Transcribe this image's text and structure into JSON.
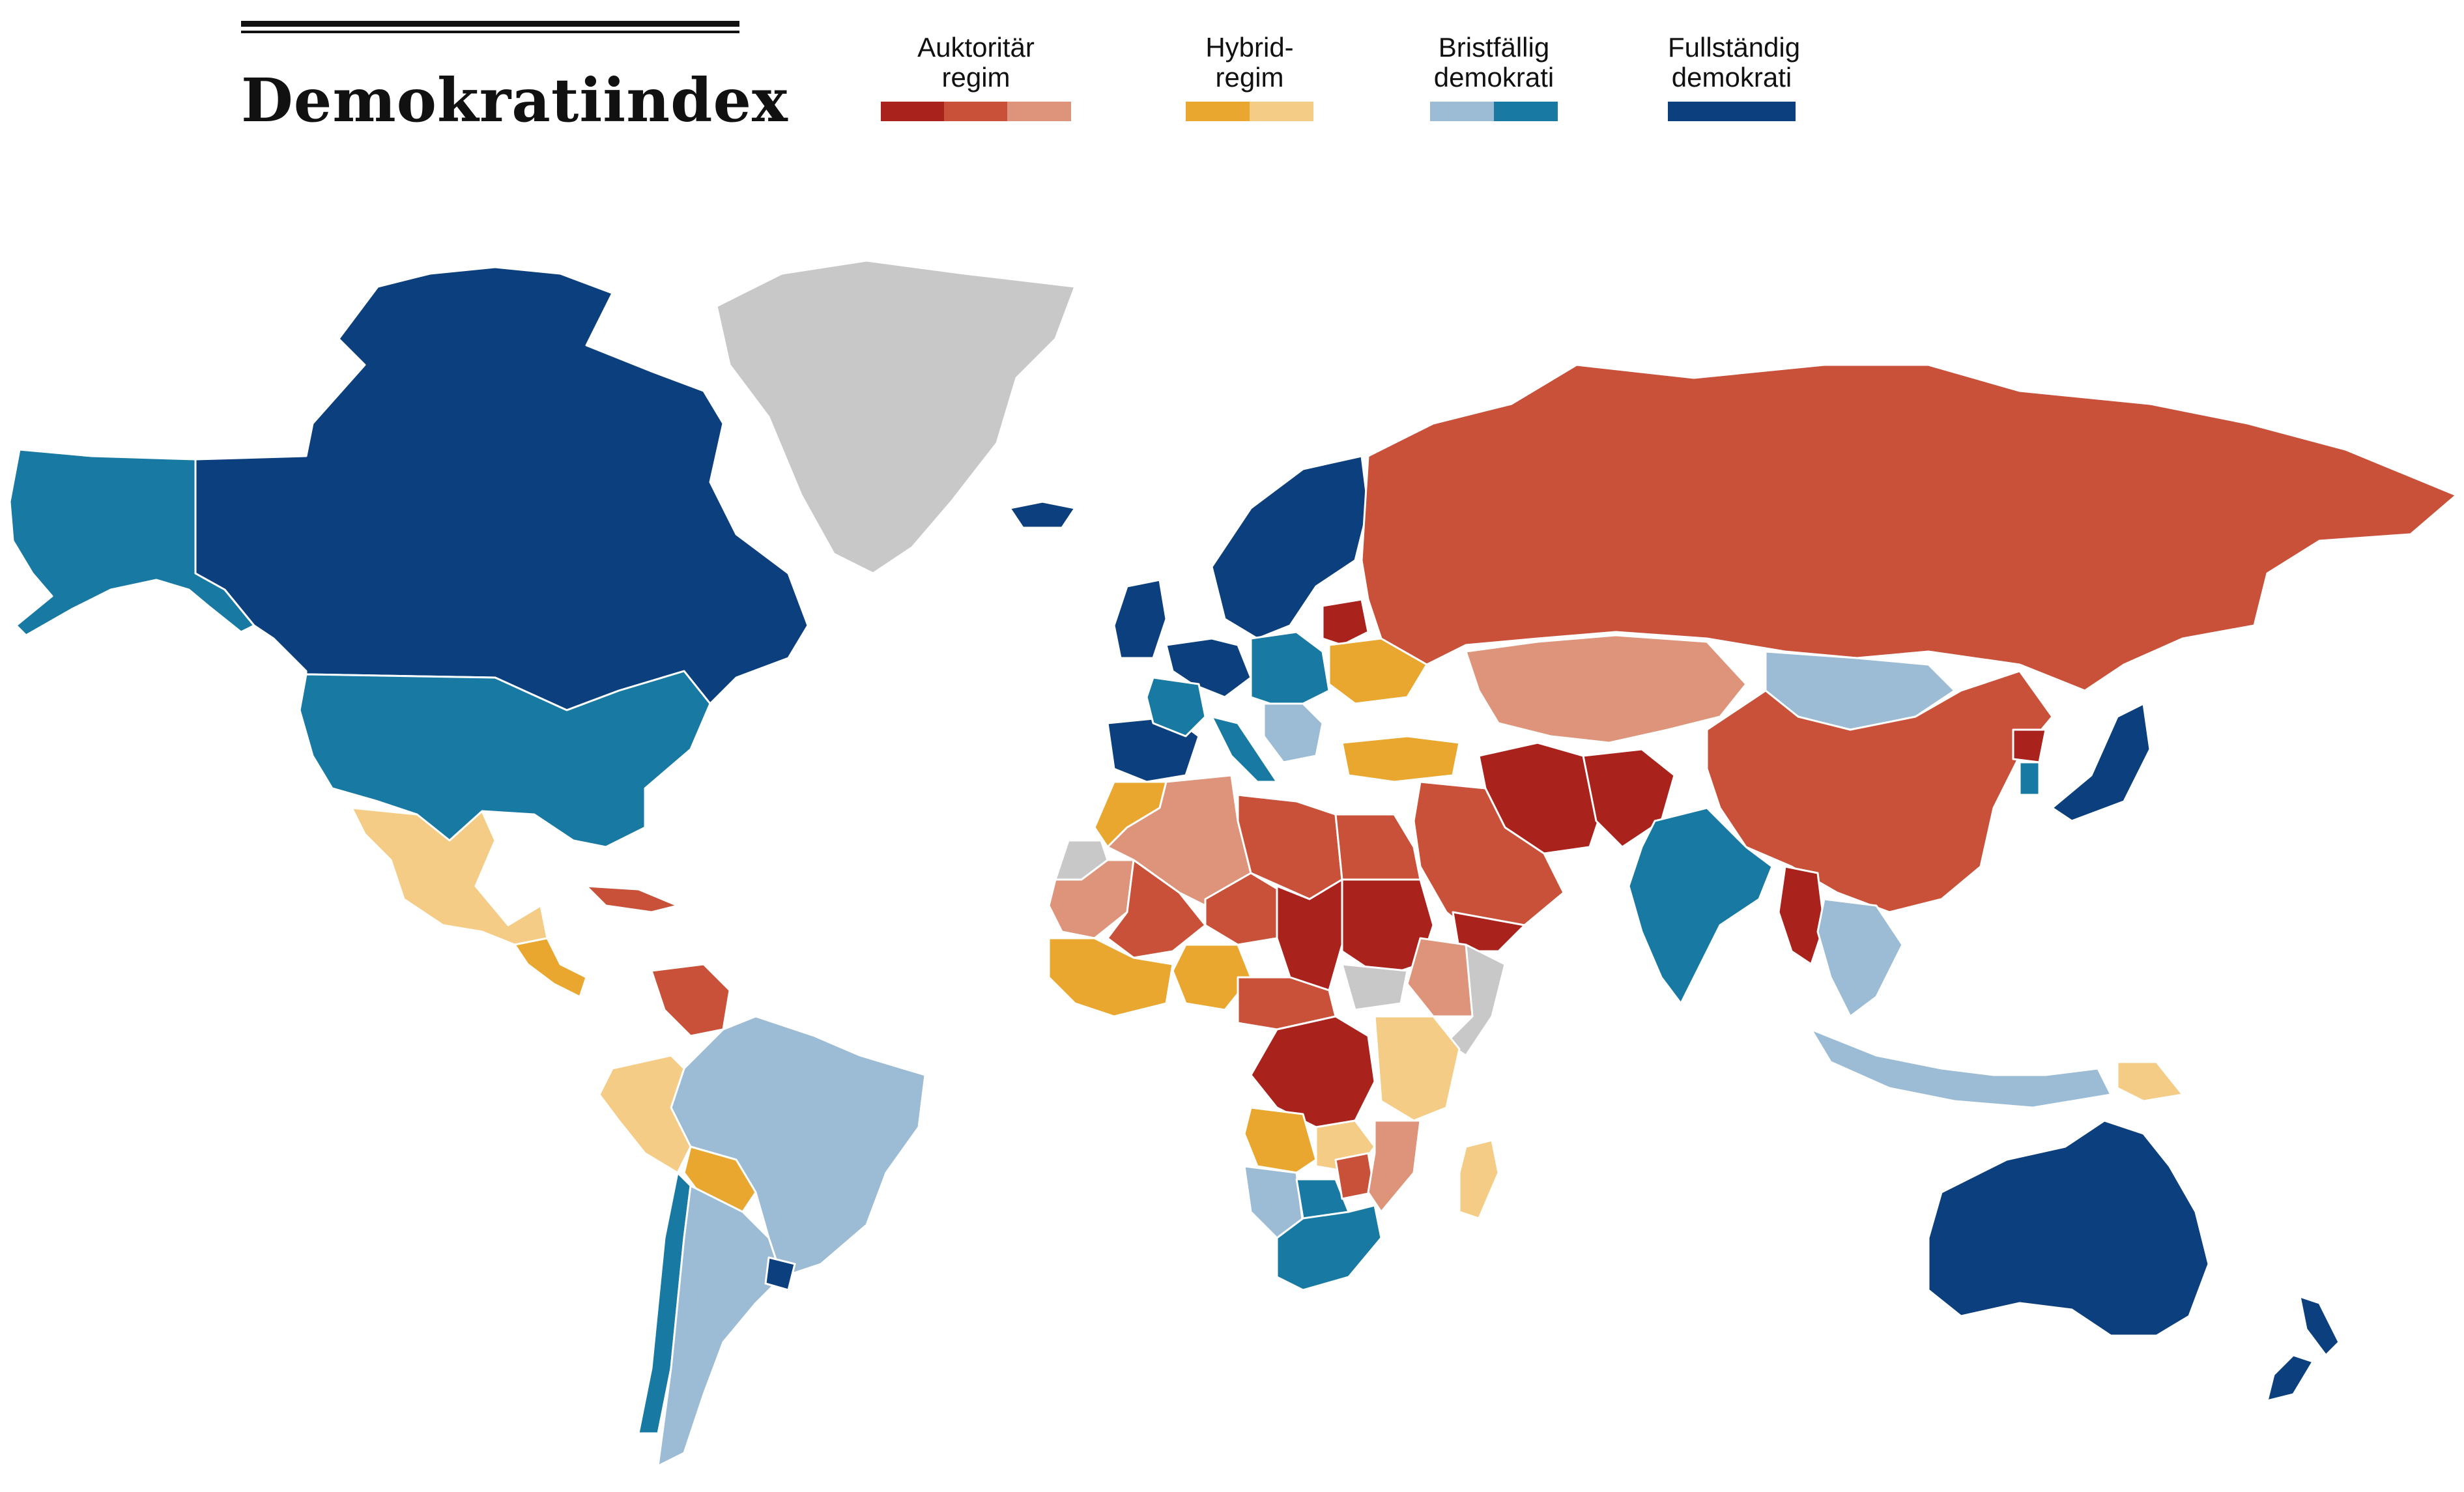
{
  "title": "Demokratiindex",
  "legend": [
    {
      "label_line1": "Auktoritär",
      "label_line2": "regim",
      "colors": [
        "#a9231c",
        "#c9513a",
        "#dd947a"
      ]
    },
    {
      "label_line1": "Hybrid-",
      "label_line2": "regim",
      "colors": [
        "#e9a72f",
        "#f5cc86"
      ]
    },
    {
      "label_line1": "Bristfällig",
      "label_line2": "demokrati",
      "colors": [
        "#9bbcd4",
        "#187aa3"
      ]
    },
    {
      "label_line1": "Fullständig",
      "label_line2": "demokrati",
      "colors": [
        "#0c3f7d"
      ]
    }
  ],
  "no_data_color": "#c8c8c8",
  "regions": [
    {
      "name": "Alaska",
      "category": "bristfällig demokrati",
      "color": "#187aa3"
    },
    {
      "name": "Kanada",
      "category": "fullständig demokrati",
      "color": "#0c3f7d"
    },
    {
      "name": "Grönland",
      "category": "ingen data",
      "color": "#c8c8c8"
    },
    {
      "name": "USA",
      "category": "bristfällig demokrati",
      "color": "#187aa3"
    },
    {
      "name": "Mexiko",
      "category": "hybridregim",
      "color": "#f5cc86"
    },
    {
      "name": "Centralamerika",
      "category": "hybridregim",
      "color": "#e9a72f"
    },
    {
      "name": "Kuba",
      "category": "auktoritär regim",
      "color": "#c9513a"
    },
    {
      "name": "Venezuela",
      "category": "auktoritär regim",
      "color": "#c9513a"
    },
    {
      "name": "Brasilien",
      "category": "bristfällig demokrati",
      "color": "#9bbcd4"
    },
    {
      "name": "Peru",
      "category": "hybridregim",
      "color": "#f5cc86"
    },
    {
      "name": "Bolivia",
      "category": "hybridregim",
      "color": "#e9a72f"
    },
    {
      "name": "Chile",
      "category": "bristfällig demokrati",
      "color": "#187aa3"
    },
    {
      "name": "Argentina",
      "category": "bristfällig demokrati",
      "color": "#9bbcd4"
    },
    {
      "name": "Uruguay",
      "category": "fullständig demokrati",
      "color": "#0c3f7d"
    },
    {
      "name": "Island",
      "category": "fullständig demokrati",
      "color": "#0c3f7d"
    },
    {
      "name": "Norden",
      "category": "fullständig demokrati",
      "color": "#0c3f7d"
    },
    {
      "name": "Storbritannien",
      "category": "fullständig demokrati",
      "color": "#0c3f7d"
    },
    {
      "name": "Västeuropa",
      "category": "fullständig demokrati",
      "color": "#0c3f7d"
    },
    {
      "name": "Iberiska halvön",
      "category": "fullständig demokrati",
      "color": "#0c3f7d"
    },
    {
      "name": "Frankrike",
      "category": "bristfällig demokrati",
      "color": "#187aa3"
    },
    {
      "name": "Italien",
      "category": "bristfällig demokrati",
      "color": "#187aa3"
    },
    {
      "name": "Östeuropa",
      "category": "bristfällig demokrati",
      "color": "#187aa3"
    },
    {
      "name": "Balkan",
      "category": "bristfällig demokrati",
      "color": "#9bbcd4"
    },
    {
      "name": "Vitryssland",
      "category": "auktoritär regim",
      "color": "#a9231c"
    },
    {
      "name": "Ukraina",
      "category": "hybridregim",
      "color": "#e9a72f"
    },
    {
      "name": "Turkiet",
      "category": "hybridregim",
      "color": "#e9a72f"
    },
    {
      "name": "Ryssland",
      "category": "auktoritär regim",
      "color": "#c9513a"
    },
    {
      "name": "Kazakstan",
      "category": "auktoritär regim",
      "color": "#dd947a"
    },
    {
      "name": "Mongoliet",
      "category": "bristfällig demokrati",
      "color": "#9bbcd4"
    },
    {
      "name": "Kina",
      "category": "auktoritär regim",
      "color": "#c9513a"
    },
    {
      "name": "Iran",
      "category": "auktoritär regim",
      "color": "#a9231c"
    },
    {
      "name": "Afghanistan",
      "category": "auktoritär regim",
      "color": "#a9231c"
    },
    {
      "name": "Arabiska halvön",
      "category": "auktoritär regim",
      "color": "#c9513a"
    },
    {
      "name": "Jemen",
      "category": "auktoritär regim",
      "color": "#a9231c"
    },
    {
      "name": "Indien",
      "category": "bristfällig demokrati",
      "color": "#187aa3"
    },
    {
      "name": "Myanmar",
      "category": "auktoritär regim",
      "color": "#a9231c"
    },
    {
      "name": "Sydostasien",
      "category": "bristfällig demokrati",
      "color": "#9bbcd4"
    },
    {
      "name": "Indonesien",
      "category": "bristfällig demokrati",
      "color": "#9bbcd4"
    },
    {
      "name": "Japan",
      "category": "fullständig demokrati",
      "color": "#0c3f7d"
    },
    {
      "name": "Sydkorea",
      "category": "bristfällig demokrati",
      "color": "#187aa3"
    },
    {
      "name": "Nordkorea",
      "category": "auktoritär regim",
      "color": "#a9231c"
    },
    {
      "name": "Papua Nya Guinea",
      "category": "hybridregim",
      "color": "#f5cc86"
    },
    {
      "name": "Australien",
      "category": "fullständig demokrati",
      "color": "#0c3f7d"
    },
    {
      "name": "Nya Zeeland",
      "category": "fullständig demokrati",
      "color": "#0c3f7d"
    },
    {
      "name": "Marocko",
      "category": "hybridregim",
      "color": "#e9a72f"
    },
    {
      "name": "Algeriet",
      "category": "auktoritär regim",
      "color": "#dd947a"
    },
    {
      "name": "Libyen",
      "category": "auktoritär regim",
      "color": "#c9513a"
    },
    {
      "name": "Egypten",
      "category": "auktoritär regim",
      "color": "#c9513a"
    },
    {
      "name": "Mauretanien",
      "category": "auktoritär regim",
      "color": "#dd947a"
    },
    {
      "name": "Mali",
      "category": "auktoritär regim",
      "color": "#c9513a"
    },
    {
      "name": "Niger",
      "category": "auktoritär regim",
      "color": "#c9513a"
    },
    {
      "name": "Tchad",
      "category": "auktoritär regim",
      "color": "#a9231c"
    },
    {
      "name": "Sudan",
      "category": "auktoritär regim",
      "color": "#a9231c"
    },
    {
      "name": "Västra Sahara",
      "category": "ingen data",
      "color": "#c8c8c8"
    },
    {
      "name": "Västafrika",
      "category": "hybridregim",
      "color": "#e9a72f"
    },
    {
      "name": "Nigeria",
      "category": "hybridregim",
      "color": "#e9a72f"
    },
    {
      "name": "Centralafrika",
      "category": "auktoritär regim",
      "color": "#c9513a"
    },
    {
      "name": "DR Kongo",
      "category": "auktoritär regim",
      "color": "#a9231c"
    },
    {
      "name": "Etiopien",
      "category": "auktoritär regim",
      "color": "#dd947a"
    },
    {
      "name": "Somalia",
      "category": "ingen data",
      "color": "#c8c8c8"
    },
    {
      "name": "Sydsudan",
      "category": "ingen data",
      "color": "#c8c8c8"
    },
    {
      "name": "Östafrika",
      "category": "hybridregim",
      "color": "#f5cc86"
    },
    {
      "name": "Angola",
      "category": "hybridregim",
      "color": "#e9a72f"
    },
    {
      "name": "Zambia",
      "category": "hybridregim",
      "color": "#f5cc86"
    },
    {
      "name": "Namibia",
      "category": "bristfällig demokrati",
      "color": "#9bbcd4"
    },
    {
      "name": "Botswana",
      "category": "bristfällig demokrati",
      "color": "#187aa3"
    },
    {
      "name": "Zimbabwe",
      "category": "auktoritär regim",
      "color": "#c9513a"
    },
    {
      "name": "Moçambique",
      "category": "auktoritär regim",
      "color": "#dd947a"
    },
    {
      "name": "Sydafrika",
      "category": "bristfällig demokrati",
      "color": "#187aa3"
    },
    {
      "name": "Madagaskar",
      "category": "hybridregim",
      "color": "#f5cc86"
    }
  ]
}
